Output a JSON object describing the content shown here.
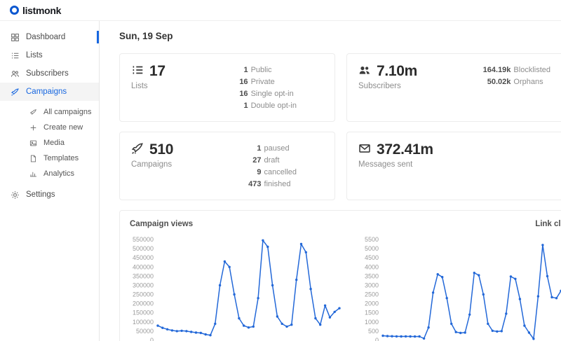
{
  "header": {
    "logo_text": "listmonk"
  },
  "main": {
    "date_heading": "Sun, 19 Sep"
  },
  "sidebar": {
    "items": [
      {
        "label": "Dashboard"
      },
      {
        "label": "Lists"
      },
      {
        "label": "Subscribers"
      },
      {
        "label": "Campaigns"
      },
      {
        "label": "All campaigns"
      },
      {
        "label": "Create new"
      },
      {
        "label": "Media"
      },
      {
        "label": "Templates"
      },
      {
        "label": "Analytics"
      },
      {
        "label": "Settings"
      }
    ]
  },
  "cards": [
    {
      "value": "17",
      "label": "Lists",
      "breakdown": [
        {
          "num": "1",
          "label": "Public"
        },
        {
          "num": "16",
          "label": "Private"
        },
        {
          "num": "16",
          "label": "Single opt-in"
        },
        {
          "num": "1",
          "label": "Double opt-in"
        }
      ]
    },
    {
      "value": "7.10m",
      "label": "Subscribers",
      "breakdown": [
        {
          "num": "164.19k",
          "label": "Blocklisted"
        },
        {
          "num": "50.02k",
          "label": "Orphans"
        }
      ]
    },
    {
      "value": "510",
      "label": "Campaigns",
      "breakdown": [
        {
          "num": "1",
          "label": "paused"
        },
        {
          "num": "27",
          "label": "draft"
        },
        {
          "num": "9",
          "label": "cancelled"
        },
        {
          "num": "473",
          "label": "finished"
        }
      ]
    },
    {
      "value": "372.41m",
      "label": "Messages sent",
      "breakdown": []
    }
  ],
  "charts_section": {
    "left_title": "Campaign views",
    "right_title": "Link clicks"
  },
  "chart_data": [
    {
      "type": "line",
      "title": "Campaign views",
      "xlabel": "",
      "ylabel": "",
      "ylim": [
        0,
        550000
      ],
      "ytick": 50000,
      "grid": false,
      "legend": "none",
      "values": [
        80000,
        68000,
        60000,
        54000,
        50000,
        52000,
        50000,
        46000,
        42000,
        40000,
        32000,
        28000,
        90000,
        300000,
        430000,
        400000,
        250000,
        120000,
        80000,
        70000,
        75000,
        230000,
        545000,
        510000,
        300000,
        130000,
        90000,
        75000,
        85000,
        330000,
        525000,
        480000,
        280000,
        120000,
        85000,
        190000,
        125000,
        155000,
        175000
      ]
    },
    {
      "type": "line",
      "title": "Link clicks",
      "xlabel": "",
      "ylabel": "",
      "ylim": [
        0,
        5500
      ],
      "ytick": 500,
      "grid": false,
      "legend": "none",
      "values": [
        250,
        230,
        220,
        215,
        210,
        215,
        210,
        205,
        210,
        100,
        700,
        2600,
        3600,
        3450,
        2300,
        900,
        450,
        400,
        420,
        1400,
        3680,
        3550,
        2500,
        900,
        520,
        480,
        500,
        1450,
        3480,
        3350,
        2250,
        800,
        420,
        80,
        2400,
        5200,
        3500,
        2350,
        2300,
        2700
      ]
    }
  ],
  "colors": {
    "primary": "#1767e0",
    "chart_line": "#2368d8"
  }
}
